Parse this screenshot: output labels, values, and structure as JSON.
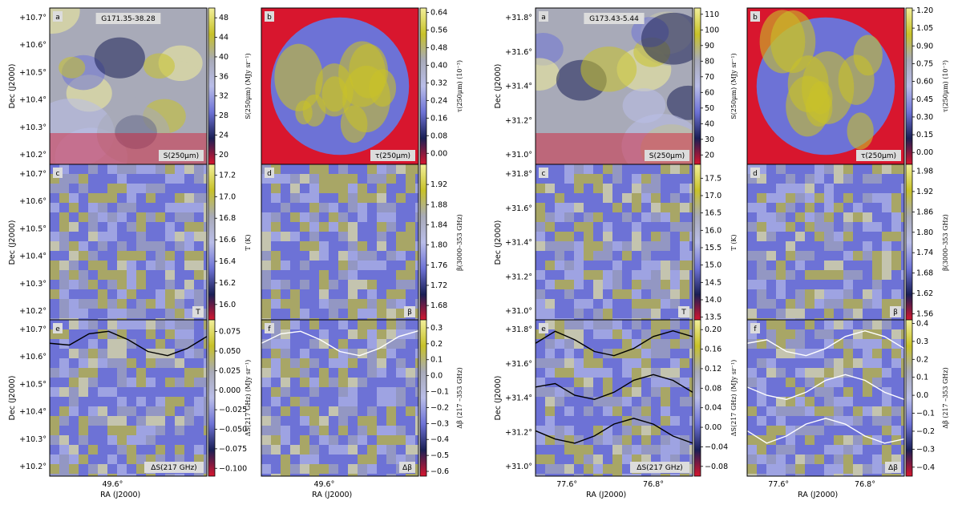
{
  "colors": {
    "red": "#d8162e",
    "dark_navy": "#1a1f55",
    "blue": "#6d72d6",
    "lavender": "#b9bde8",
    "gray": "#a8aab8",
    "yellow": "#c8c229",
    "bright_yellow": "#f2ef9a",
    "contour_dark": "#000000",
    "contour_light": "#ffffff"
  },
  "chart_data": {
    "type": "heatmap",
    "colormap": [
      "#d8162e",
      "#1a1f55",
      "#6d72d6",
      "#b9bde8",
      "#a8aab8",
      "#c8c229",
      "#f2ef9a"
    ],
    "columns": [
      {
        "field": "G171.35-38.28",
        "y_label": "Dec (J2000)",
        "y_ticks": [
          "+10.7°",
          "+10.6°",
          "+10.5°",
          "+10.4°",
          "+10.3°",
          "+10.2°"
        ],
        "x_label": "RA (J2000)",
        "x_ticks": [
          "49.6°"
        ],
        "panels": [
          {
            "letter": "a",
            "field_label": "G171.35-38.28",
            "map_label": "S(250μm)",
            "colorbar_label": "S(250μm) (MJy sr⁻¹)",
            "colorbar_ticks": [
              "48",
              "44",
              "40",
              "36",
              "32",
              "28",
              "24",
              "20"
            ],
            "cbar_range": [
              18,
              50
            ],
            "contours": 0
          },
          {
            "letter": "c",
            "map_label": "T",
            "colorbar_label": "T (K)",
            "colorbar_ticks": [
              "17.2",
              "17.0",
              "16.8",
              "16.6",
              "16.4",
              "16.2",
              "16.0"
            ],
            "cbar_range": [
              15.85,
              17.3
            ],
            "contours": 0
          },
          {
            "letter": "e",
            "map_label": "ΔS(217 GHz)",
            "colorbar_label": "ΔS(217 GHz) (MJy sr⁻¹)",
            "colorbar_ticks": [
              "0.075",
              "0.050",
              "0.025",
              "0.000",
              "−0.025",
              "−0.050",
              "−0.075",
              "−0.100"
            ],
            "cbar_range": [
              -0.11,
              0.09
            ],
            "contours": 1
          }
        ]
      },
      {
        "field": "G171.35-38.28",
        "x_label": "RA (J2000)",
        "x_ticks": [
          "49.6°"
        ],
        "panels": [
          {
            "letter": "b",
            "map_label": "τ(250μm)",
            "colorbar_label": "τ(250μm) (10⁻³)",
            "colorbar_ticks": [
              "0.64",
              "0.56",
              "0.48",
              "0.40",
              "0.32",
              "0.24",
              "0.16",
              "0.08",
              "0.00"
            ],
            "cbar_range": [
              -0.05,
              0.66
            ],
            "contours": 0
          },
          {
            "letter": "d",
            "map_label": "β",
            "colorbar_label": "β(3000–353 GHz)",
            "colorbar_ticks": [
              "1.92",
              "1.88",
              "1.84",
              "1.80",
              "1.76",
              "1.72",
              "1.68"
            ],
            "cbar_range": [
              1.65,
              1.96
            ],
            "contours": 0
          },
          {
            "letter": "f",
            "map_label": "Δβ",
            "colorbar_label": "Δβ (217 –353 GHz)",
            "colorbar_ticks": [
              "0.3",
              "0.2",
              "0.1",
              "0.0",
              "−0.1",
              "−0.2",
              "−0.3",
              "−0.4",
              "−0.5",
              "−0.6"
            ],
            "cbar_range": [
              -0.63,
              0.35
            ],
            "contours": 1
          }
        ]
      },
      {
        "field": "G173.43-5.44",
        "y_label": "Dec (J2000)",
        "y_ticks": [
          "+31.8°",
          "+31.6°",
          "+31.4°",
          "+31.2°",
          "+31.0°"
        ],
        "x_label": "RA (J2000)",
        "x_ticks": [
          "77.6°",
          "76.8°"
        ],
        "panels": [
          {
            "letter": "a",
            "field_label": "G173.43-5.44",
            "map_label": "S(250μm)",
            "colorbar_label": "S(250μm) (MJy sr⁻¹)",
            "colorbar_ticks": [
              "110",
              "100",
              "90",
              "80",
              "70",
              "60",
              "50",
              "40",
              "30",
              "20"
            ],
            "cbar_range": [
              14,
              114
            ],
            "contours": 0
          },
          {
            "letter": "c",
            "map_label": "T",
            "colorbar_label": "T (K)",
            "colorbar_ticks": [
              "17.5",
              "17.0",
              "16.5",
              "16.0",
              "15.5",
              "15.0",
              "14.5",
              "14.0",
              "13.5"
            ],
            "cbar_range": [
              13.4,
              17.9
            ],
            "contours": 0
          },
          {
            "letter": "e",
            "map_label": "ΔS(217 GHz)",
            "colorbar_label": "ΔS(217 GHz) (MJy sr⁻¹)",
            "colorbar_ticks": [
              "0.20",
              "0.16",
              "0.12",
              "0.08",
              "0.04",
              "0.00",
              "−0.04",
              "−0.08"
            ],
            "cbar_range": [
              -0.1,
              0.22
            ],
            "contours": 3
          }
        ]
      },
      {
        "field": "G173.43-5.44",
        "x_label": "RA (J2000)",
        "x_ticks": [
          "77.6°",
          "76.8°"
        ],
        "panels": [
          {
            "letter": "b",
            "map_label": "τ(250μm)",
            "colorbar_label": "τ(250μm) (10⁻³)",
            "colorbar_ticks": [
              "1.20",
              "1.05",
              "0.90",
              "0.75",
              "0.60",
              "0.45",
              "0.30",
              "0.15",
              "0.00"
            ],
            "cbar_range": [
              -0.1,
              1.22
            ],
            "contours": 0
          },
          {
            "letter": "d",
            "map_label": "β",
            "colorbar_label": "β(3000–353 GHz)",
            "colorbar_ticks": [
              "1.98",
              "1.92",
              "1.86",
              "1.80",
              "1.74",
              "1.68",
              "1.62",
              "1.56"
            ],
            "cbar_range": [
              1.54,
              2.0
            ],
            "contours": 0
          },
          {
            "letter": "f",
            "map_label": "Δβ",
            "colorbar_label": "Δβ (217 –353 GHz)",
            "colorbar_ticks": [
              "0.4",
              "0.3",
              "0.2",
              "0.1",
              "0.0",
              "−0.1",
              "−0.2",
              "−0.3",
              "−0.4"
            ],
            "cbar_range": [
              -0.45,
              0.42
            ],
            "contours": 3
          }
        ]
      }
    ]
  }
}
